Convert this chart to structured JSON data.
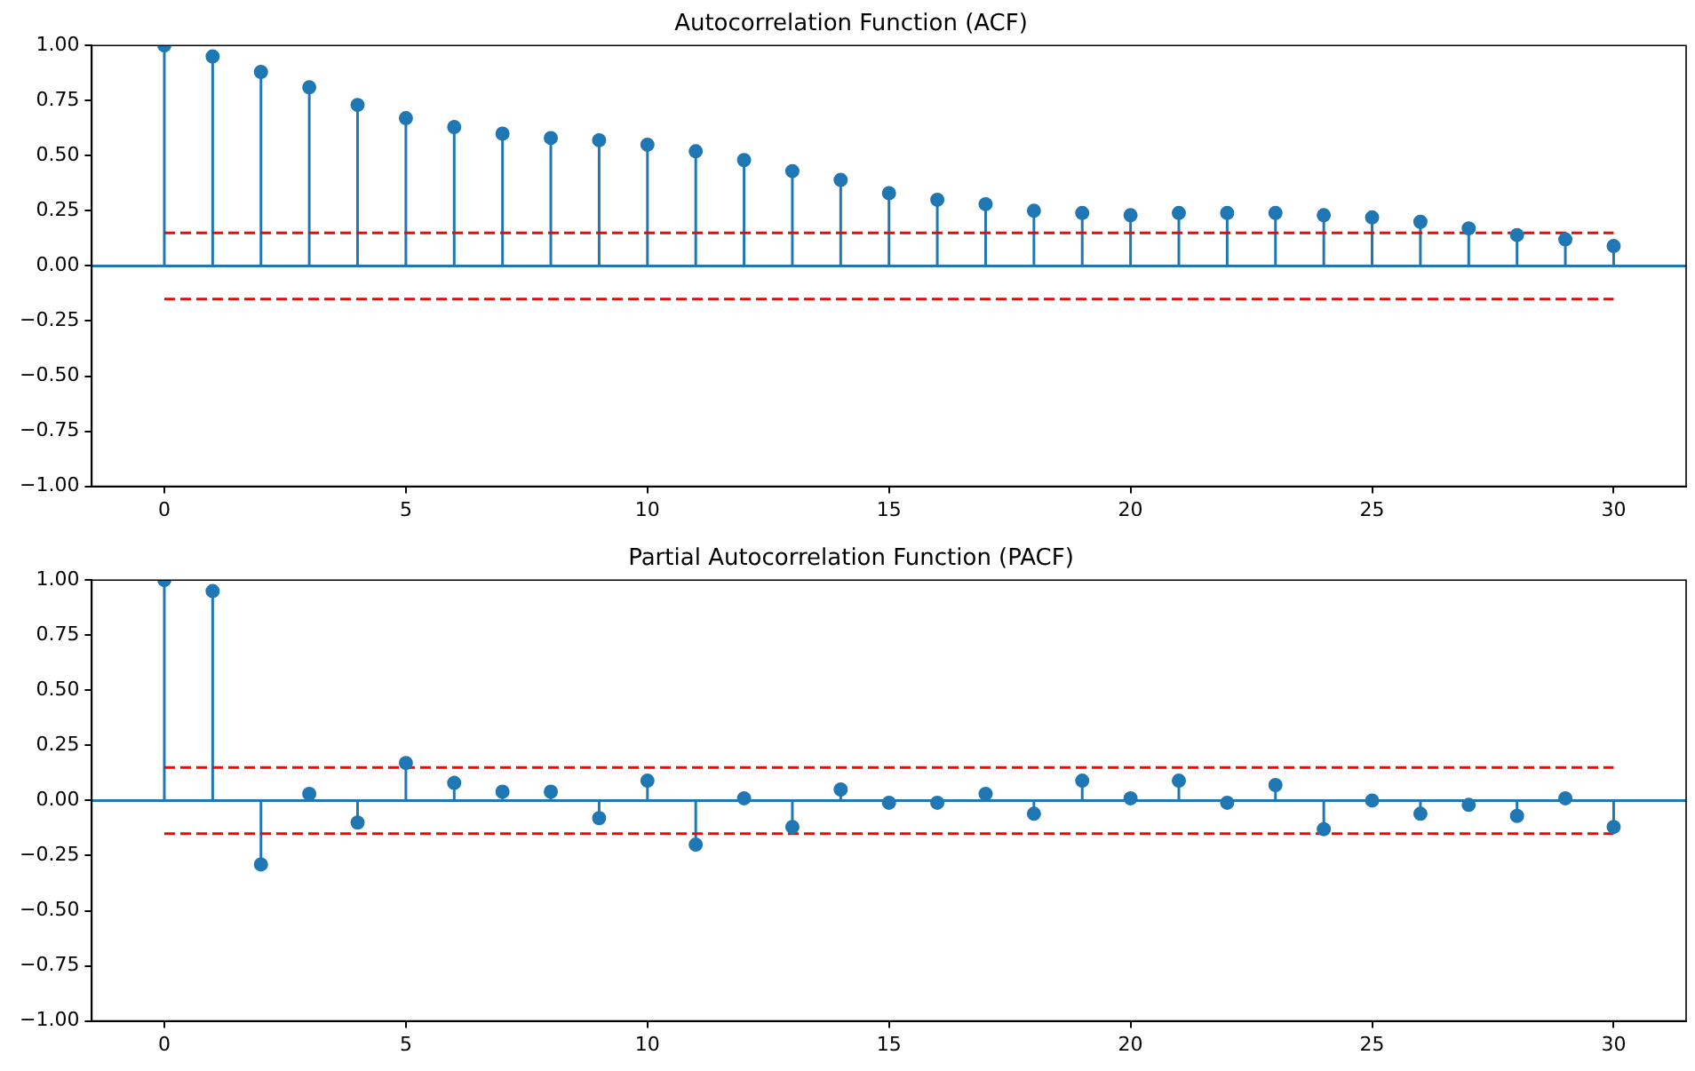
{
  "chart_data": [
    {
      "type": "lollipop",
      "title": "Autocorrelation Function (ACF)",
      "x": [
        0,
        1,
        2,
        3,
        4,
        5,
        6,
        7,
        8,
        9,
        10,
        11,
        12,
        13,
        14,
        15,
        16,
        17,
        18,
        19,
        20,
        21,
        22,
        23,
        24,
        25,
        26,
        27,
        28,
        29,
        30
      ],
      "series": [
        {
          "color": "#1f77b4",
          "values": [
            1.0,
            0.95,
            0.88,
            0.81,
            0.73,
            0.67,
            0.63,
            0.6,
            0.58,
            0.57,
            0.55,
            0.52,
            0.48,
            0.43,
            0.39,
            0.33,
            0.3,
            0.28,
            0.25,
            0.24,
            0.23,
            0.24,
            0.24,
            0.24,
            0.23,
            0.22,
            0.2,
            0.17,
            0.14,
            0.12,
            0.09
          ]
        }
      ],
      "xlim": [
        -1.5,
        31.5
      ],
      "xticks": [
        0,
        5,
        10,
        15,
        20,
        25,
        30
      ],
      "ylim": [
        -1.0,
        1.0
      ],
      "yticks": [
        {
          "value": -1,
          "label": "−1.00"
        },
        {
          "value": -0.75,
          "label": "−0.75"
        },
        {
          "value": -0.5,
          "label": "−0.50"
        },
        {
          "value": -0.25,
          "label": "−0.25"
        },
        {
          "value": 0,
          "label": "0.00"
        },
        {
          "value": 0.25,
          "label": "0.25"
        },
        {
          "value": 0.5,
          "label": "0.50"
        },
        {
          "value": 0.75,
          "label": "0.75"
        },
        {
          "value": 1,
          "label": "1.00"
        }
      ],
      "ref_lines": [
        {
          "axis": "y",
          "value": 0,
          "color": "#1f77b4",
          "line_style": "solid"
        },
        {
          "axis": "y",
          "value": 0.15,
          "color": "#ff0000",
          "line_style": "dashed"
        },
        {
          "axis": "y",
          "value": -0.15,
          "color": "#ff0000",
          "line_style": "dashed"
        }
      ],
      "marker": "circle",
      "grid": false,
      "legend": false
    },
    {
      "type": "lollipop",
      "title": "Partial Autocorrelation Function (PACF)",
      "x": [
        0,
        1,
        2,
        3,
        4,
        5,
        6,
        7,
        8,
        9,
        10,
        11,
        12,
        13,
        14,
        15,
        16,
        17,
        18,
        19,
        20,
        21,
        22,
        23,
        24,
        25,
        26,
        27,
        28,
        29,
        30
      ],
      "series": [
        {
          "color": "#1f77b4",
          "values": [
            1.0,
            0.95,
            -0.29,
            0.03,
            -0.1,
            0.17,
            0.08,
            0.04,
            0.04,
            -0.08,
            0.09,
            -0.2,
            0.01,
            -0.12,
            0.05,
            -0.01,
            -0.01,
            0.03,
            -0.06,
            0.09,
            0.01,
            0.09,
            -0.01,
            0.07,
            -0.13,
            0.0,
            -0.06,
            -0.02,
            -0.07,
            0.01,
            -0.12
          ]
        }
      ],
      "xlim": [
        -1.5,
        31.5
      ],
      "xticks": [
        0,
        5,
        10,
        15,
        20,
        25,
        30
      ],
      "ylim": [
        -1.0,
        1.0
      ],
      "yticks": [
        {
          "value": -1,
          "label": "−1.00"
        },
        {
          "value": -0.75,
          "label": "−0.75"
        },
        {
          "value": -0.5,
          "label": "−0.50"
        },
        {
          "value": -0.25,
          "label": "−0.25"
        },
        {
          "value": 0,
          "label": "0.00"
        },
        {
          "value": 0.25,
          "label": "0.25"
        },
        {
          "value": 0.5,
          "label": "0.50"
        },
        {
          "value": 0.75,
          "label": "0.75"
        },
        {
          "value": 1,
          "label": "1.00"
        }
      ],
      "ref_lines": [
        {
          "axis": "y",
          "value": 0,
          "color": "#1f77b4",
          "line_style": "solid"
        },
        {
          "axis": "y",
          "value": 0.15,
          "color": "#ff0000",
          "line_style": "dashed"
        },
        {
          "axis": "y",
          "value": -0.15,
          "color": "#ff0000",
          "line_style": "dashed"
        }
      ],
      "marker": "circle",
      "grid": false,
      "legend": false
    }
  ]
}
